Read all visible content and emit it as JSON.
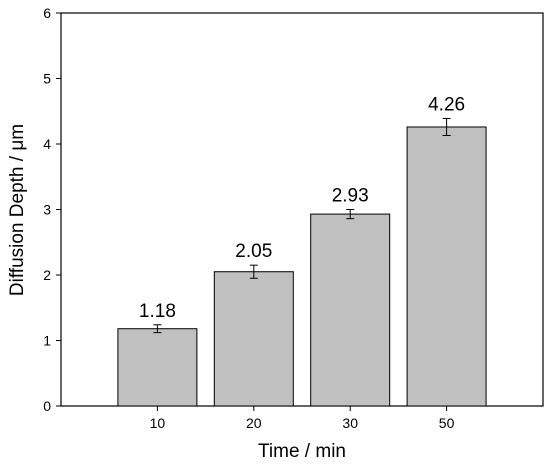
{
  "chart_data": {
    "type": "bar",
    "categories": [
      "10",
      "20",
      "30",
      "50"
    ],
    "values": [
      1.18,
      2.05,
      2.93,
      4.26
    ],
    "errors": [
      0.06,
      0.1,
      0.07,
      0.13
    ],
    "data_labels": [
      "1.18",
      "2.05",
      "2.93",
      "4.26"
    ],
    "title": "",
    "xlabel": "Time / min",
    "ylabel": "Diffusion Depth / μm",
    "ylim": [
      0,
      6
    ],
    "yticks": [
      "0",
      "1",
      "2",
      "3",
      "4",
      "5",
      "6"
    ],
    "grid": false,
    "legend": "none",
    "bar_color": "#c0c0c0",
    "bar_edge_color": "#000000"
  }
}
